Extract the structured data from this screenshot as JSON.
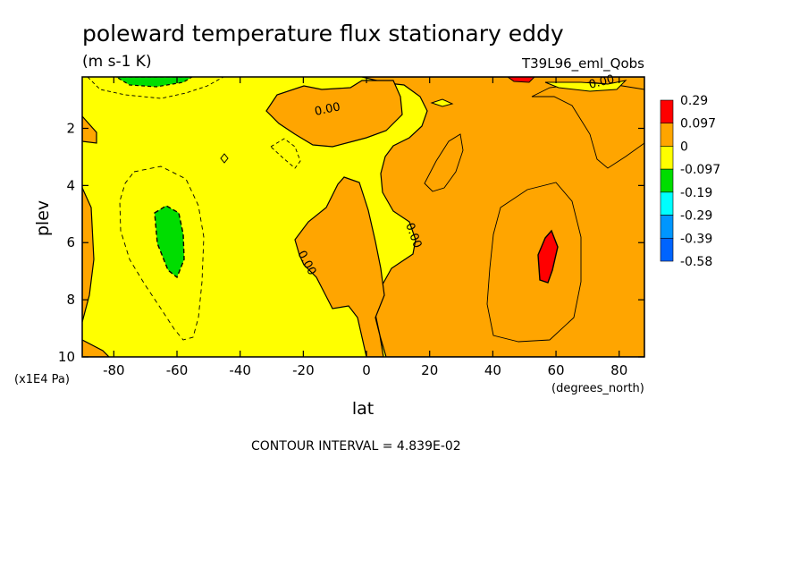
{
  "chart_data": {
    "type": "contour",
    "title": "poleward temperature flux stationary eddy",
    "units": "(m s-1 K)",
    "run_name": "T39L96_eml_Qobs",
    "xlabel": "lat",
    "ylabel": "plev",
    "x_units": "(degrees_north)",
    "y_units": "(x1E4 Pa)",
    "xlim": [
      -90,
      88
    ],
    "ylim": [
      10,
      0.2
    ],
    "x_ticks": [
      "-80",
      "-60",
      "-40",
      "-20",
      "0",
      "20",
      "40",
      "60",
      "80"
    ],
    "x_tick_values": [
      -80,
      -60,
      -40,
      -20,
      0,
      20,
      40,
      60,
      80
    ],
    "y_ticks": [
      "2",
      "4",
      "6",
      "8",
      "10"
    ],
    "y_tick_values": [
      2,
      4,
      6,
      8,
      10
    ],
    "contour_interval_text": "CONTOUR INTERVAL = 4.839E-02",
    "contour_labels": [
      "0.00",
      "0.00",
      "0.00",
      "0.00"
    ],
    "colorbar": {
      "labels": [
        "0.29",
        "0.097",
        "0",
        "-0.097",
        "-0.19",
        "-0.29",
        "-0.39",
        "-0.58"
      ],
      "colors": [
        "#ff0000",
        "#ffa500",
        "#ffff00",
        "#00dd00",
        "#00ffff",
        "#0096ff",
        "#0064ff"
      ]
    },
    "features": [
      {
        "name": "negative minimum",
        "lat": -60,
        "plev": 6,
        "range": "-0.097 to -0.19"
      },
      {
        "name": "positive maximum",
        "lat": 57,
        "plev": 6.5,
        "range": "above 0.097"
      },
      {
        "name": "weak negative near top",
        "lat": -75,
        "plev": 0.3,
        "range": "-0.097 to -0.19"
      }
    ]
  }
}
